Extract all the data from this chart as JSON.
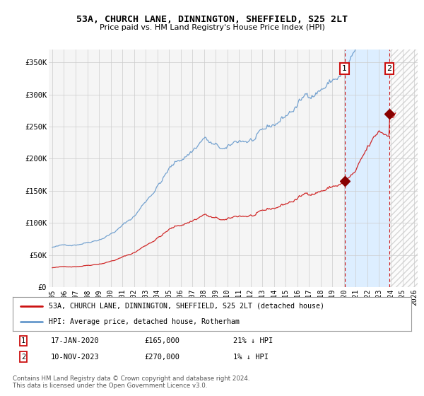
{
  "title": "53A, CHURCH LANE, DINNINGTON, SHEFFIELD, S25 2LT",
  "subtitle": "Price paid vs. HM Land Registry's House Price Index (HPI)",
  "ylim": [
    0,
    370000
  ],
  "xlim": [
    1994.7,
    2026.3
  ],
  "yticks": [
    0,
    50000,
    100000,
    150000,
    200000,
    250000,
    300000,
    350000
  ],
  "ytick_labels": [
    "£0",
    "£50K",
    "£100K",
    "£150K",
    "£200K",
    "£250K",
    "£300K",
    "£350K"
  ],
  "xticks": [
    1995,
    1996,
    1997,
    1998,
    1999,
    2000,
    2001,
    2002,
    2003,
    2004,
    2005,
    2006,
    2007,
    2008,
    2009,
    2010,
    2011,
    2012,
    2013,
    2014,
    2015,
    2016,
    2017,
    2018,
    2019,
    2020,
    2021,
    2022,
    2023,
    2024,
    2025,
    2026
  ],
  "background_color": "#ffffff",
  "plot_bg_color": "#f5f5f5",
  "grid_color": "#cccccc",
  "hpi_color": "#6699cc",
  "price_color": "#cc1111",
  "shade_color": "#ddeeff",
  "marker1_date": 2020.04,
  "marker1_price": 165000,
  "marker2_date": 2023.87,
  "marker2_price": 270000,
  "legend_label1": "53A, CHURCH LANE, DINNINGTON, SHEFFIELD, S25 2LT (detached house)",
  "legend_label2": "HPI: Average price, detached house, Rotherham",
  "annotation1": [
    "1",
    "17-JAN-2020",
    "£165,000",
    "21% ↓ HPI"
  ],
  "annotation2": [
    "2",
    "10-NOV-2023",
    "£270,000",
    "1% ↓ HPI"
  ],
  "footer": "Contains HM Land Registry data © Crown copyright and database right 2024.\nThis data is licensed under the Open Government Licence v3.0."
}
